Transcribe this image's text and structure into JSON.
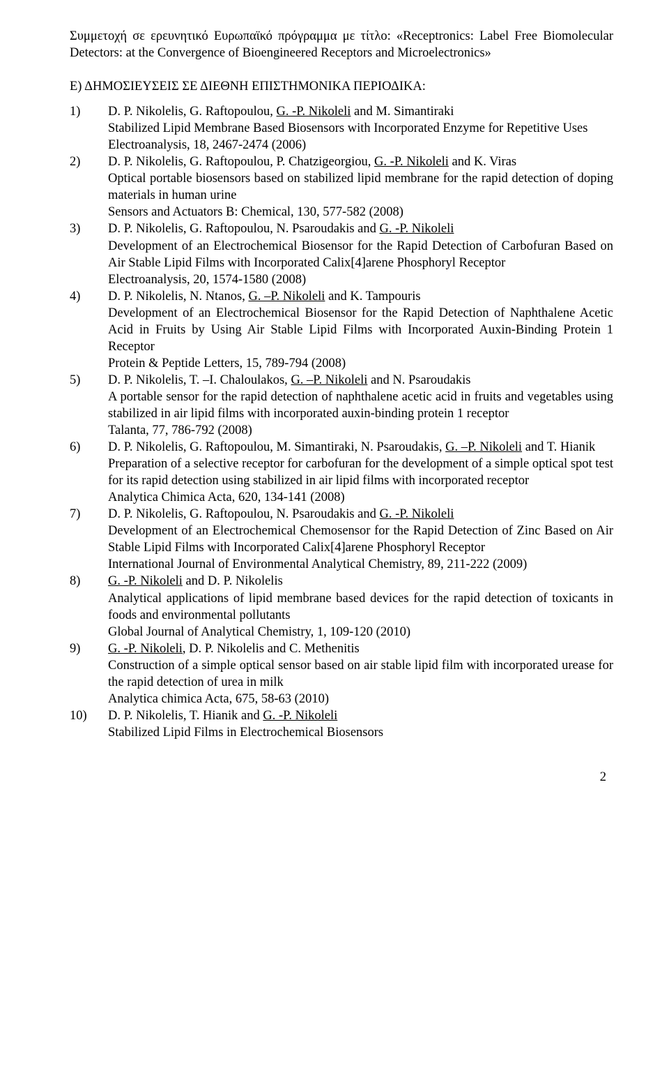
{
  "intro_line1": "Συμμετοχή σε ερευνητικό Ευρωπαϊκό πρόγραμμα με τίτλο: «Receptronics: Label Free Biomolecular Detectors: at the Convergence of Bioengineered Receptors and Microelectronics»",
  "section_e_title": "Ε) ΔΗΜΟΣΙΕΥΣΕΙΣ ΣΕ ΔΙΕΘΝΗ ΕΠΙΣΤΗΜΟΝΙΚΑ ΠΕΡΙΟΔΙΚΑ:",
  "entries": {
    "1": {
      "num": "1)",
      "auth_pre": "D. P. Nikolelis, G. Raftopoulou, ",
      "auth_u": "G. -P. Nikoleli",
      "auth_post": " and M. Simantiraki",
      "title": "Stabilized Lipid Membrane Based Biosensors with Incorporated Enzyme for Repetitive Uses",
      "src": "Electroanalysis, 18, 2467-2474 (2006)"
    },
    "2": {
      "num": "2)",
      "auth_pre": "D. P. Nikolelis, G. Raftopoulou, P. Chatzigeorgiou, ",
      "auth_u": "G. -P. Nikoleli",
      "auth_post": " and K. Viras",
      "title": "Optical portable biosensors based on stabilized lipid membrane for the rapid detection of doping materials in human urine",
      "src": "Sensors and Actuators B: Chemical, 130, 577-582 (2008)"
    },
    "3": {
      "num": "3)",
      "auth_pre": "D. P. Nikolelis, G. Raftopoulou, N. Psaroudakis and ",
      "auth_u": "G. -P. Nikoleli",
      "auth_post": "",
      "title": "Development of an Electrochemical Biosensor for the Rapid Detection of Carbofuran Based on Air Stable Lipid Films with Incorporated Calix[4]arene Phosphoryl Receptor",
      "src": "Electroanalysis, 20, 1574-1580 (2008)"
    },
    "4": {
      "num": "4)",
      "auth_pre": "D. P. Nikolelis, N. Ntanos, ",
      "auth_u": "G. –P. Nikoleli",
      "auth_post": " and K. Tampouris",
      "title": "Development of an Electrochemical Biosensor for the Rapid Detection of Naphthalene Acetic Acid in Fruits by Using Air Stable Lipid Films with Incorporated Auxin-Binding Protein 1 Receptor",
      "src": "Protein & Peptide Letters, 15, 789-794 (2008)"
    },
    "5": {
      "num": "5)",
      "auth_pre": "D. P. Nikolelis, T. –I. Chaloulakos, ",
      "auth_u": "G. –P. Nikoleli",
      "auth_post": " and N. Psaroudakis",
      "title": "A portable sensor for the rapid detection of naphthalene acetic acid in fruits and vegetables using stabilized in air lipid films with incorporated auxin-binding protein 1 receptor",
      "src": "Talanta, 77, 786-792 (2008)"
    },
    "6": {
      "num": "6)",
      "auth_pre": "D. P. Nikolelis, G. Raftopoulou, M. Simantiraki, N. Psaroudakis, ",
      "auth_u": "G. –P. Nikoleli",
      "auth_post": " and T. Hianik",
      "title": "Preparation of a selective receptor for carbofuran for the development of a simple optical spot test for its rapid detection using stabilized in air lipid films with incorporated receptor",
      "src": "Analytica Chimica Acta, 620, 134-141 (2008)"
    },
    "7": {
      "num": "7)",
      "auth_pre": "D. P. Nikolelis, G. Raftopoulou, N. Psaroudakis and ",
      "auth_u": "G. -P. Nikoleli",
      "auth_post": "",
      "title": "Development of an Electrochemical Chemosensor for the Rapid Detection of Zinc Based on Air Stable Lipid Films with Incorporated Calix[4]arene Phosphoryl Receptor",
      "src": "International Journal of Environmental Analytical Chemistry, 89, 211-222 (2009)"
    },
    "8": {
      "num": "8)",
      "auth_pre": "",
      "auth_u": "G. -P. Nikoleli",
      "auth_post": " and D. P. Nikolelis",
      "title": "Analytical applications of lipid membrane based devices for the rapid detection of toxicants in foods and environmental pollutants",
      "src": "Global Journal of Analytical Chemistry, 1, 109-120 (2010)"
    },
    "9": {
      "num": "9)",
      "auth_pre": "",
      "auth_u": "G. -P. Nikoleli",
      "auth_post": ", D. P. Nikolelis and C. Methenitis",
      "title": "Construction of a simple optical sensor based on air stable lipid film with incorporated urease for the rapid detection of urea in milk",
      "src": "Analytica chimica Acta, 675, 58-63 (2010)"
    },
    "10": {
      "num": "10)",
      "auth_pre": "D. P. Nikolelis, T. Hianik and ",
      "auth_u": "G. -P. Nikoleli",
      "auth_post": "",
      "title": "Stabilized Lipid Films in Electrochemical Biosensors",
      "src": ""
    }
  },
  "page_number": "2"
}
